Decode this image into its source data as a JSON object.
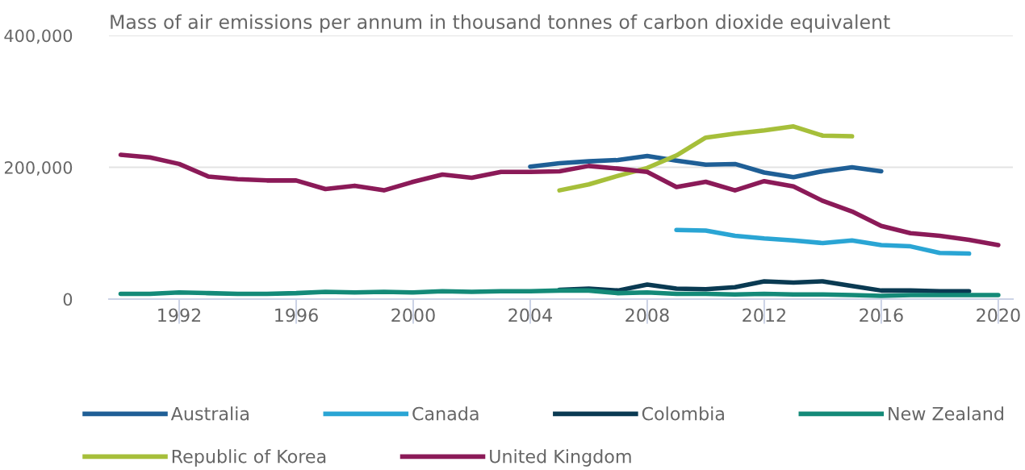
{
  "chart_data": {
    "type": "line",
    "title": "Mass of air emissions per annum in thousand tonnes of carbon dioxide equivalent",
    "x": [
      1990,
      1991,
      1992,
      1993,
      1994,
      1995,
      1996,
      1997,
      1998,
      1999,
      2000,
      2001,
      2002,
      2003,
      2004,
      2005,
      2006,
      2007,
      2008,
      2009,
      2010,
      2011,
      2012,
      2013,
      2014,
      2015,
      2016,
      2017,
      2018,
      2019,
      2020
    ],
    "series": [
      {
        "name": "Australia",
        "color": "#1f5f96",
        "x": [
          2004,
          2005,
          2006,
          2007,
          2008,
          2009,
          2010,
          2011,
          2012,
          2013,
          2014,
          2015,
          2016
        ],
        "values": [
          201000,
          206000,
          209000,
          211000,
          217000,
          210000,
          204000,
          205000,
          192000,
          185000,
          194000,
          200000,
          194000
        ]
      },
      {
        "name": "Canada",
        "color": "#2aa5d4",
        "x": [
          2009,
          2010,
          2011,
          2012,
          2013,
          2014,
          2015,
          2016,
          2017,
          2018,
          2019
        ],
        "values": [
          105000,
          104000,
          96000,
          92000,
          89000,
          85000,
          89000,
          82000,
          80000,
          70000,
          69000
        ]
      },
      {
        "name": "Colombia",
        "color": "#0a3a52",
        "x": [
          2005,
          2006,
          2007,
          2008,
          2009,
          2010,
          2011,
          2012,
          2013,
          2014,
          2015,
          2016,
          2017,
          2018,
          2019
        ],
        "values": [
          14000,
          16000,
          13000,
          22000,
          16000,
          15000,
          18000,
          27000,
          25000,
          27000,
          20000,
          13000,
          13000,
          12000,
          12000
        ]
      },
      {
        "name": "New Zealand",
        "color": "#148a78",
        "values": [
          8000,
          8000,
          10000,
          9000,
          8000,
          8000,
          9000,
          11000,
          10000,
          11000,
          10000,
          12000,
          11000,
          12000,
          12000,
          13000,
          13000,
          9000,
          10000,
          8000,
          8000,
          7000,
          8000,
          7000,
          7000,
          6000,
          5000,
          6000,
          6000,
          6000,
          6000
        ]
      },
      {
        "name": "Republic of Korea",
        "color": "#a6bf3a",
        "x": [
          2005,
          2006,
          2007,
          2008,
          2009,
          2010,
          2011,
          2012,
          2013,
          2014,
          2015
        ],
        "values": [
          165000,
          174000,
          187000,
          199000,
          218000,
          245000,
          251000,
          256000,
          262000,
          248000,
          247000
        ]
      },
      {
        "name": "United Kingdom",
        "color": "#8b1a58",
        "values": [
          219000,
          215000,
          205000,
          186000,
          182000,
          180000,
          180000,
          167000,
          172000,
          165000,
          178000,
          189000,
          184000,
          193000,
          193000,
          194000,
          202000,
          198000,
          193000,
          170000,
          178000,
          165000,
          179000,
          171000,
          149000,
          133000,
          111000,
          100000,
          96000,
          90000,
          82000
        ]
      }
    ],
    "xlim": [
      1989.6,
      2020.5
    ],
    "xticks": [
      1992,
      1996,
      2000,
      2004,
      2008,
      2012,
      2016,
      2020
    ],
    "ylim": [
      0,
      400000
    ],
    "yticks": [
      {
        "value": 0,
        "label": "0"
      },
      {
        "value": 200000,
        "label": "200,000"
      },
      {
        "value": 400000,
        "label": "400,000"
      }
    ],
    "grid": "y",
    "legend": "bottom",
    "marker": "none",
    "line_style": "solid"
  }
}
